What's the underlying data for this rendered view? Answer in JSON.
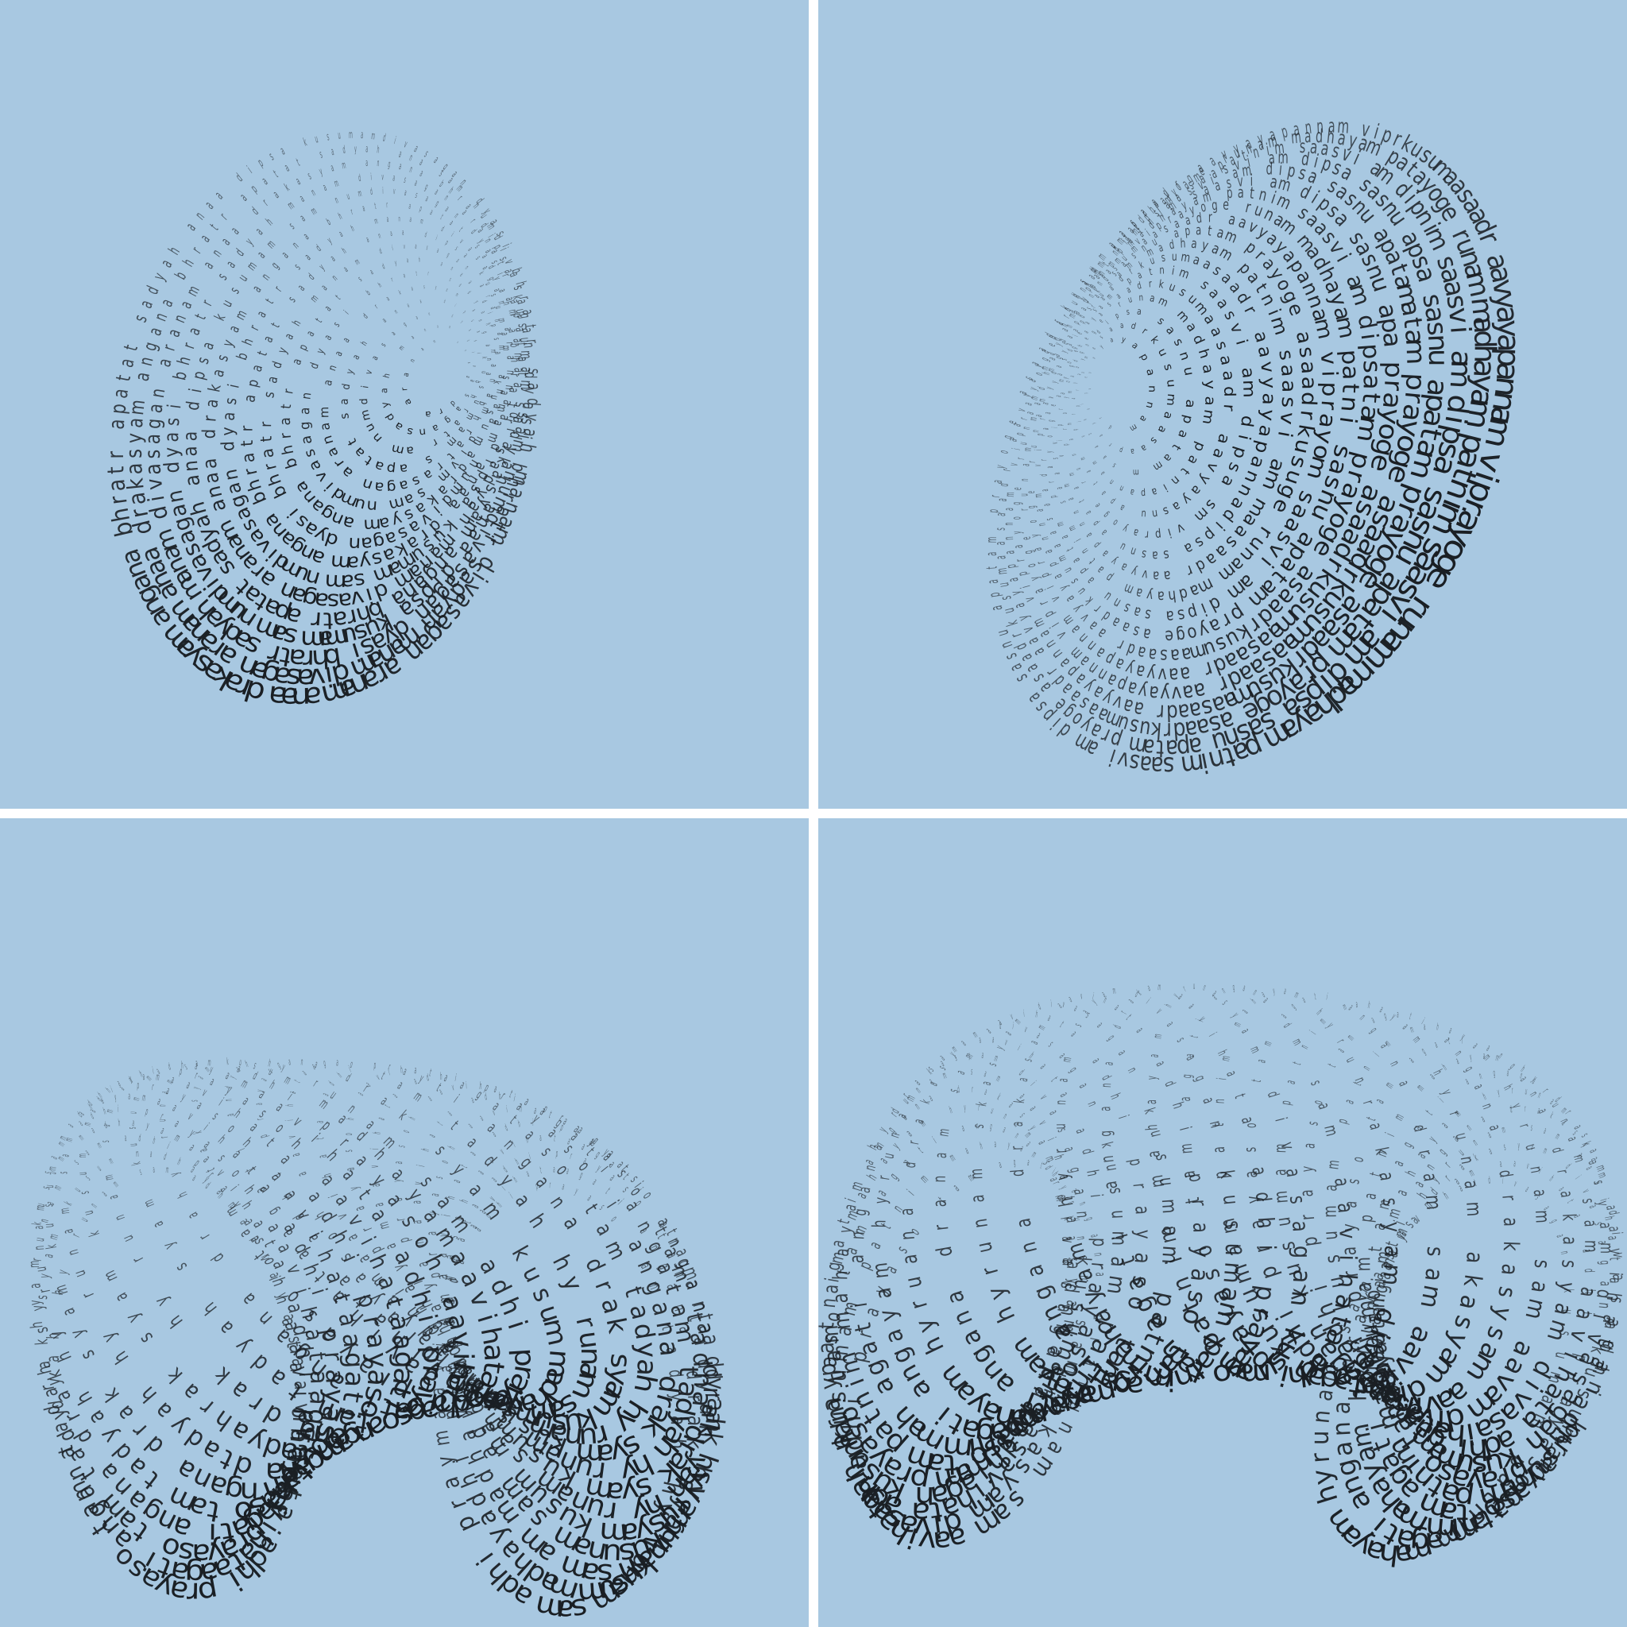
{
  "colors": {
    "background": "#a8c8e1",
    "ink": "#1a1f24",
    "divider": "#ffffff"
  },
  "panels": [
    {
      "id": "panel-tl",
      "shape": "nested-ellipse-spiral",
      "words": [
        "divasagan",
        "dyasi bhratr",
        "sadyah",
        "manam divasagan",
        "aranam",
        "anaa",
        "drakasyam",
        "angana",
        "bhratr",
        "apatat",
        "sadyah",
        "anaa",
        "dipsa",
        "kusumam",
        "sam",
        "num"
      ],
      "labels": []
    },
    {
      "id": "panel-tr",
      "shape": "eye-ellipse-spiral",
      "words": [
        "kusumaasaadr",
        "aavyayapannam",
        "viprayoge",
        "runam",
        "madhayam",
        "patnim",
        "saasvi",
        "am",
        "dipsa",
        "sasnu",
        "apatam",
        "prayoge",
        "asaadr"
      ],
      "labels": []
    },
    {
      "id": "panel-bl",
      "shape": "twisted-torus",
      "words": [
        "aavihata",
        "adhi prayaso",
        "tam",
        "tadyah",
        "hy",
        "runam",
        "sam",
        "adhi",
        "prayasoh",
        "aavihataagati",
        "angana",
        "drak",
        "syam",
        "kusum",
        "madhayam"
      ],
      "labels": []
    },
    {
      "id": "panel-br",
      "shape": "wide-torus-spiral",
      "words": [
        "runam",
        "sam",
        "aavihata",
        "adhi",
        "prayaso",
        "tam",
        "agati",
        "angana",
        "drakasyam",
        "divasagan",
        "kusumam",
        "patnim",
        "mahayam",
        "hy"
      ],
      "labels": []
    }
  ]
}
